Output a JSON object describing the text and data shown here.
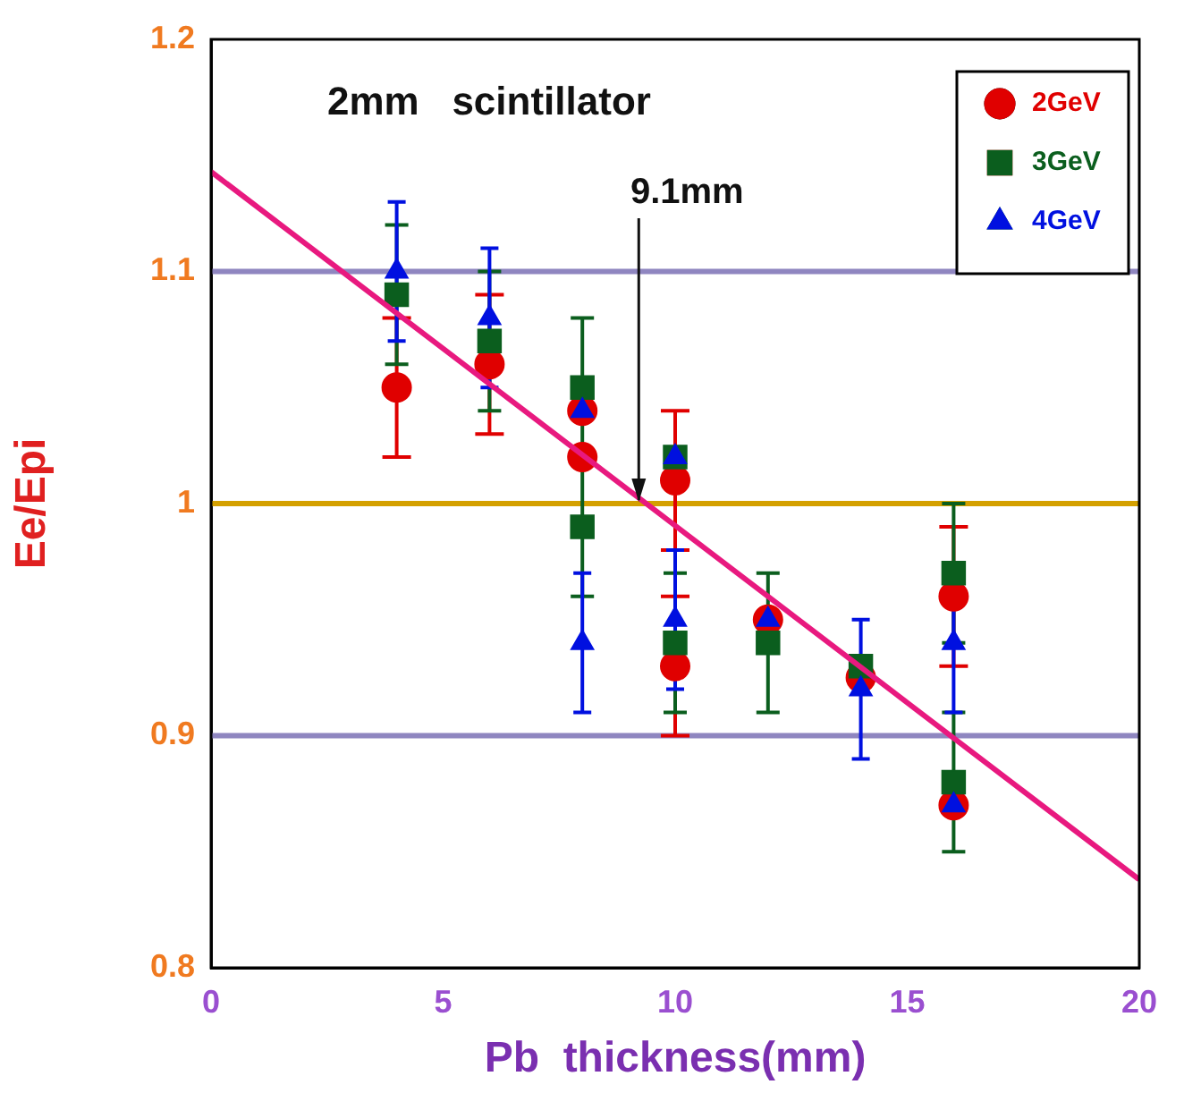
{
  "chart_data": {
    "type": "scatter",
    "xlabel": "Pb  thickness(mm)",
    "ylabel": "Ee/Epi",
    "xlim": [
      0,
      20
    ],
    "xticks": [
      0,
      5,
      10,
      15,
      20
    ],
    "ylim": [
      0.8,
      1.2
    ],
    "yticks": [
      0.8,
      0.9,
      1,
      1.1,
      1.2
    ],
    "grid": false,
    "legend": "top right",
    "annotations": [
      "2mm   scintillator",
      {
        "text": "9.1mm",
        "x": 9.1,
        "y": 1.0
      }
    ],
    "ref_lines": [
      {
        "axis": "y",
        "value": 1.1,
        "color": "#8f86c0"
      },
      {
        "axis": "y",
        "value": 0.9,
        "color": "#8f86c0"
      },
      {
        "axis": "y",
        "value": 1.0,
        "color": "#d4a000"
      }
    ],
    "series": [
      {
        "name": "2GeV",
        "color": "#e00000",
        "marker": "circle",
        "x": [
          4,
          6,
          8,
          8,
          10,
          10,
          12,
          14,
          16,
          16
        ],
        "values": [
          1.05,
          1.06,
          1.02,
          1.04,
          1.01,
          0.93,
          0.95,
          0.925,
          0.96,
          0.87
        ],
        "errors": [
          0.03,
          0.03,
          null,
          null,
          0.03,
          0.03,
          null,
          null,
          0.03,
          null
        ]
      },
      {
        "name": "3GeV",
        "color": "#0b5e1e",
        "marker": "square",
        "x": [
          4,
          6,
          8,
          8,
          10,
          10,
          12,
          14,
          16,
          16
        ],
        "values": [
          1.09,
          1.07,
          1.05,
          0.99,
          1.02,
          0.94,
          0.94,
          0.93,
          0.97,
          0.88
        ],
        "errors": [
          0.03,
          0.03,
          0.03,
          0.03,
          null,
          0.03,
          0.03,
          null,
          0.03,
          0.03
        ]
      },
      {
        "name": "4GeV",
        "color": "#0010e0",
        "marker": "triangle",
        "x": [
          4,
          6,
          8,
          8,
          10,
          10,
          12,
          14,
          16,
          16
        ],
        "values": [
          1.1,
          1.08,
          1.04,
          0.94,
          1.02,
          0.95,
          0.95,
          0.92,
          0.94,
          0.87
        ],
        "errors": [
          0.03,
          0.03,
          null,
          0.03,
          null,
          0.03,
          null,
          0.03,
          0.03,
          null
        ]
      },
      {
        "type": "line",
        "color": "#e8197f",
        "marker": "none",
        "x": [
          0,
          20
        ],
        "values": [
          1.143,
          0.838
        ]
      }
    ]
  }
}
